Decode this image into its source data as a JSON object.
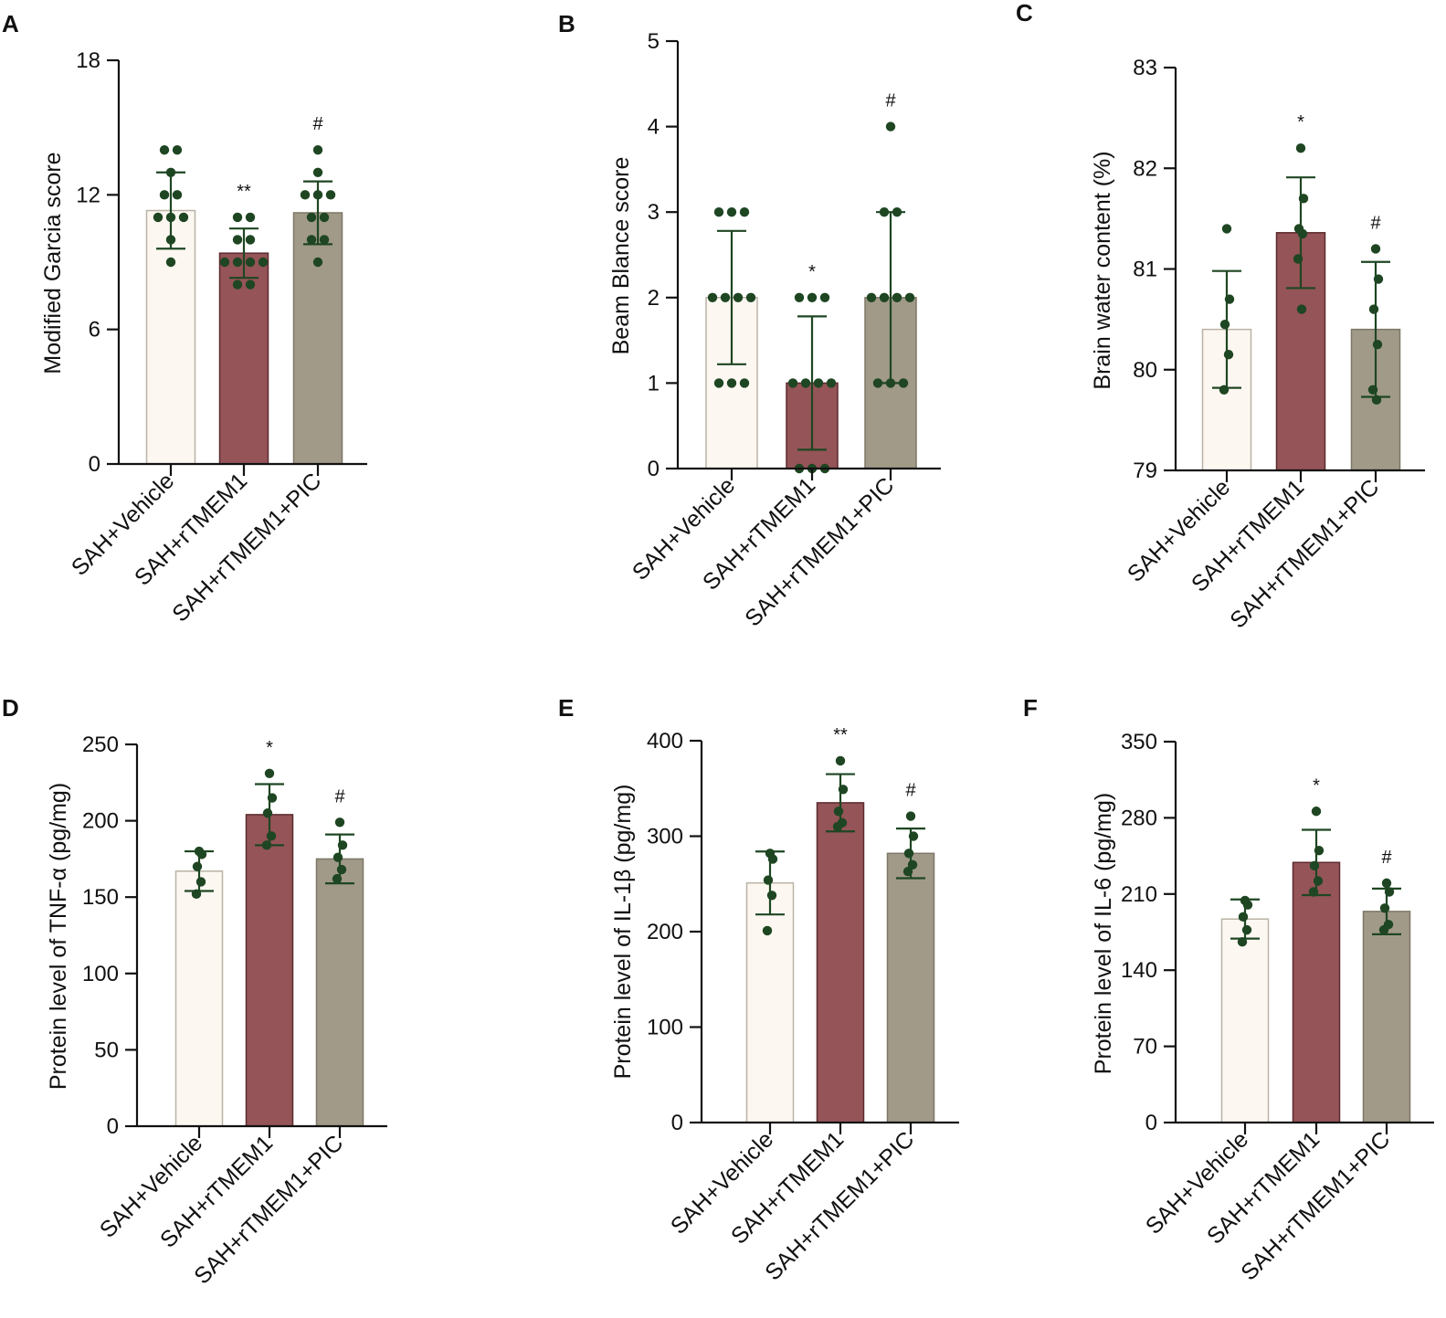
{
  "figure": {
    "colors": {
      "vehicle_fill": "#fdf7f2",
      "vehicle_stroke": "#b9b3a5",
      "rtmem1_fill": "#955458",
      "rtmem1_stroke": "#5b2a2f",
      "pic_fill": "#a19a88",
      "pic_stroke": "#7d7767",
      "dot": "#1e4622",
      "errorbar": "#1e4622",
      "axis": "#111111"
    }
  },
  "chart_data": [
    {
      "panel": "A",
      "type": "bar",
      "ylabel": "Modified Garcia score",
      "ylim": [
        0,
        18
      ],
      "yticks": [
        0,
        6,
        12,
        18
      ],
      "categories": [
        "SAH+Vehicle",
        "SAH+rTMEM1",
        "SAH+rTMEM1+PIC"
      ],
      "values": [
        11.3,
        9.4,
        11.2
      ],
      "sd": [
        1.7,
        1.1,
        1.4
      ],
      "significance": [
        "",
        "**",
        "#"
      ],
      "points": [
        [
          14,
          14,
          13,
          12,
          12,
          11,
          11,
          11,
          10,
          9
        ],
        [
          11,
          11,
          10,
          10,
          9,
          9,
          9,
          9,
          8,
          8
        ],
        [
          14,
          13,
          12,
          12,
          12,
          11,
          11,
          10,
          10,
          9
        ]
      ]
    },
    {
      "panel": "B",
      "type": "bar",
      "ylabel": "Beam Blance score",
      "ylim": [
        0,
        5
      ],
      "yticks": [
        0,
        1,
        2,
        3,
        4,
        5
      ],
      "categories": [
        "SAH+Vehicle",
        "SAH+rTMEM1",
        "SAH+rTMEM1+PIC"
      ],
      "values": [
        2.0,
        1.0,
        2.0
      ],
      "sd": [
        0.78,
        0.78,
        1.0
      ],
      "significance": [
        "",
        "*",
        "#"
      ],
      "points": [
        [
          3,
          3,
          3,
          2,
          2,
          2,
          2,
          1,
          1,
          1
        ],
        [
          2,
          2,
          2,
          1,
          1,
          1,
          1,
          0,
          0,
          0
        ],
        [
          4,
          3,
          3,
          2,
          2,
          2,
          2,
          1,
          1,
          1
        ]
      ]
    },
    {
      "panel": "C",
      "type": "bar",
      "ylabel": "Brain water content (%)",
      "ylim": [
        79,
        83
      ],
      "yticks": [
        79,
        80,
        81,
        82,
        83
      ],
      "categories": [
        "SAH+Vehicle",
        "SAH+rTMEM1",
        "SAH+rTMEM1+PIC"
      ],
      "values": [
        80.4,
        81.36,
        80.4
      ],
      "sd": [
        0.58,
        0.55,
        0.67
      ],
      "significance": [
        "",
        "*",
        "#"
      ],
      "points": [
        [
          81.4,
          80.7,
          80.45,
          80.15,
          79.8
        ],
        [
          82.2,
          81.7,
          81.4,
          81.35,
          81.1,
          80.6
        ],
        [
          81.2,
          80.9,
          80.6,
          80.25,
          79.8,
          79.7
        ]
      ]
    },
    {
      "panel": "D",
      "type": "bar",
      "ylabel": "Protein level of TNF-α (pg/mg)",
      "ylim": [
        0,
        250
      ],
      "yticks": [
        0,
        50,
        100,
        150,
        200,
        250
      ],
      "categories": [
        "SAH+Vehicle",
        "SAH+rTMEM1",
        "SAH+rTMEM1+PIC"
      ],
      "values": [
        167,
        204,
        175
      ],
      "sd": [
        13,
        20,
        16
      ],
      "significance": [
        "",
        "*",
        "#"
      ],
      "points": [
        [
          180,
          178,
          170,
          160,
          152
        ],
        [
          231,
          215,
          205,
          190,
          184
        ],
        [
          199,
          184,
          176,
          168,
          162
        ]
      ]
    },
    {
      "panel": "E",
      "type": "bar",
      "ylabel": "Protein level of  IL-1β (pg/mg)",
      "ylim": [
        0,
        400
      ],
      "yticks": [
        0,
        100,
        200,
        300,
        400
      ],
      "categories": [
        "SAH+Vehicle",
        "SAH+rTMEM1",
        "SAH+rTMEM1+PIC"
      ],
      "values": [
        251,
        335,
        282
      ],
      "sd": [
        33,
        30,
        26
      ],
      "significance": [
        "",
        "**",
        "#"
      ],
      "points": [
        [
          282,
          276,
          254,
          238,
          201
        ],
        [
          379,
          349,
          326,
          314,
          310
        ],
        [
          321,
          300,
          282,
          270,
          263
        ]
      ]
    },
    {
      "panel": "F",
      "type": "bar",
      "ylabel": "Protein level of  IL-6 (pg/mg)",
      "ylim": [
        0,
        350
      ],
      "yticks": [
        0,
        70,
        140,
        210,
        280,
        350
      ],
      "categories": [
        "SAH+Vehicle",
        "SAH+rTMEM1",
        "SAH+rTMEM1+PIC"
      ],
      "values": [
        187,
        239,
        194
      ],
      "sd": [
        18,
        30,
        21
      ],
      "significance": [
        "",
        "*",
        "#"
      ],
      "points": [
        [
          204,
          200,
          189,
          177,
          166
        ],
        [
          286,
          250,
          236,
          222,
          212
        ],
        [
          220,
          212,
          197,
          182,
          177
        ]
      ]
    }
  ]
}
